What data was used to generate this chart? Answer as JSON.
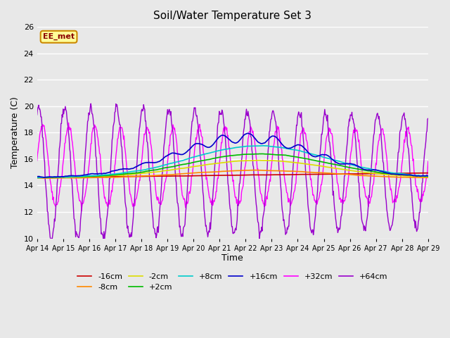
{
  "title": "Soil/Water Temperature Set 3",
  "xlabel": "Time",
  "ylabel": "Temperature (C)",
  "ylim": [
    10,
    26
  ],
  "x_tick_labels": [
    "Apr 14",
    "Apr 15",
    "Apr 16",
    "Apr 17",
    "Apr 18",
    "Apr 19",
    "Apr 20",
    "Apr 21",
    "Apr 22",
    "Apr 23",
    "Apr 24",
    "Apr 25",
    "Apr 26",
    "Apr 27",
    "Apr 28",
    "Apr 29"
  ],
  "series_colors": {
    "-16cm": "#cc0000",
    "-8cm": "#ff8800",
    "-2cm": "#dddd00",
    "+2cm": "#00bb00",
    "+8cm": "#00cccc",
    "+16cm": "#0000cc",
    "+32cm": "#ff00ff",
    "+64cm": "#9900cc"
  },
  "watermark_text": "EE_met",
  "watermark_bg": "#ffff99",
  "watermark_border": "#cc8800",
  "fig_bg": "#e8e8e8",
  "plot_bg": "#e8e8e8",
  "grid_color": "#ffffff",
  "yticks": [
    10,
    12,
    14,
    16,
    18,
    20,
    22,
    24,
    26
  ]
}
